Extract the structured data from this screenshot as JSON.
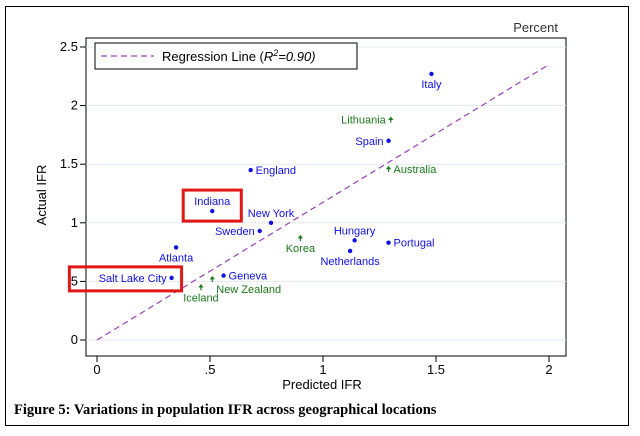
{
  "caption": "Figure 5: Variations in population IFR across geographical locations",
  "chart_data": {
    "type": "scatter",
    "corner_label": "Percent",
    "xlabel": "Predicted IFR",
    "ylabel": "Actual IFR",
    "xlim": [
      0,
      2
    ],
    "ylim": [
      0,
      2.5
    ],
    "x_ticks": [
      {
        "value": 0,
        "label": "0"
      },
      {
        "value": 0.5,
        "label": ".5"
      },
      {
        "value": 1,
        "label": "1"
      },
      {
        "value": 1.5,
        "label": "1.5"
      },
      {
        "value": 2,
        "label": "2"
      }
    ],
    "y_ticks": [
      {
        "value": 0,
        "label": "0"
      },
      {
        "value": 0.5,
        "label": ".5"
      },
      {
        "value": 1,
        "label": "1"
      },
      {
        "value": 1.5,
        "label": "1.5"
      },
      {
        "value": 2,
        "label": "2"
      },
      {
        "value": 2.5,
        "label": "2.5"
      }
    ],
    "grid": true,
    "legend": {
      "placement": "top-left",
      "entry_prefix": "Regression Line (",
      "r_symbol": "R",
      "r_exponent": "2",
      "entry_suffix": "=0.90)"
    },
    "regression_line": {
      "x": [
        0,
        2
      ],
      "y": [
        0,
        2.35
      ]
    },
    "colors": {
      "us_locations": "#1010e0",
      "countries": "#1a7a1a",
      "regression": "#9a40b8",
      "highlight": "#e01818"
    },
    "points": [
      {
        "label": "Italy",
        "x": 1.48,
        "y": 2.27,
        "group": "us_locations",
        "label_pos": "below"
      },
      {
        "label": "Lithuania",
        "x": 1.3,
        "y": 1.88,
        "group": "countries",
        "label_pos": "left"
      },
      {
        "label": "Spain",
        "x": 1.29,
        "y": 1.7,
        "group": "us_locations",
        "label_pos": "left"
      },
      {
        "label": "Australia",
        "x": 1.29,
        "y": 1.46,
        "group": "countries",
        "label_pos": "right"
      },
      {
        "label": "England",
        "x": 0.68,
        "y": 1.45,
        "group": "us_locations",
        "label_pos": "right"
      },
      {
        "label": "Indiana",
        "x": 0.51,
        "y": 1.1,
        "group": "us_locations",
        "label_pos": "above",
        "highlight": true
      },
      {
        "label": "New York",
        "x": 0.77,
        "y": 1.0,
        "group": "us_locations",
        "label_pos": "above"
      },
      {
        "label": "Sweden",
        "x": 0.72,
        "y": 0.93,
        "group": "us_locations",
        "label_pos": "left"
      },
      {
        "label": "Korea",
        "x": 0.9,
        "y": 0.87,
        "group": "countries",
        "label_pos": "below"
      },
      {
        "label": "Hungary",
        "x": 1.14,
        "y": 0.85,
        "group": "us_locations",
        "label_pos": "above"
      },
      {
        "label": "Portugal",
        "x": 1.29,
        "y": 0.83,
        "group": "us_locations",
        "label_pos": "right"
      },
      {
        "label": "Netherlands",
        "x": 1.12,
        "y": 0.76,
        "group": "us_locations",
        "label_pos": "below"
      },
      {
        "label": "Atlanta",
        "x": 0.35,
        "y": 0.79,
        "group": "us_locations",
        "label_pos": "below"
      },
      {
        "label": "Geneva",
        "x": 0.56,
        "y": 0.55,
        "group": "us_locations",
        "label_pos": "right"
      },
      {
        "label": "Salt Lake City",
        "x": 0.33,
        "y": 0.53,
        "group": "us_locations",
        "label_pos": "left",
        "highlight": true
      },
      {
        "label": "New Zealand",
        "x": 0.51,
        "y": 0.52,
        "group": "countries",
        "label_pos": "below-right"
      },
      {
        "label": "Iceland",
        "x": 0.46,
        "y": 0.45,
        "group": "countries",
        "label_pos": "below"
      }
    ]
  }
}
